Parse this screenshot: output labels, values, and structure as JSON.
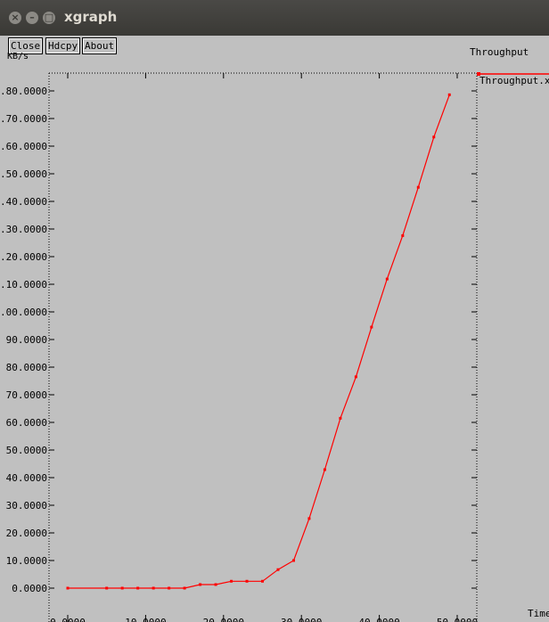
{
  "window": {
    "title": "xgraph"
  },
  "toolbar": {
    "close_label": "Close",
    "hdcpy_label": "Hdcpy",
    "about_label": "About"
  },
  "graph": {
    "title": "Throughput",
    "legend_label": "Throughput.xg",
    "line_color": "#ff0000"
  },
  "chart_data": {
    "type": "line",
    "title": "Throughput",
    "xlabel": "Time",
    "ylabel": "KB/s",
    "xlim": [
      -3.0,
      52.0
    ],
    "ylim": [
      -20.0,
      193.0
    ],
    "grid": false,
    "legend_position": "right",
    "x_ticks": [
      {
        "value": 0,
        "label": "0.0000"
      },
      {
        "value": 10,
        "label": "10.0000"
      },
      {
        "value": 20,
        "label": "20.0000"
      },
      {
        "value": 30,
        "label": "30.0000"
      },
      {
        "value": 40,
        "label": "40.0000"
      },
      {
        "value": 50,
        "label": "50.0000"
      }
    ],
    "y_ticks": [
      {
        "value": 0,
        "label": "0.0000"
      },
      {
        "value": 10,
        "label": "10.0000"
      },
      {
        "value": 20,
        "label": "20.0000"
      },
      {
        "value": 30,
        "label": "30.0000"
      },
      {
        "value": 40,
        "label": "40.0000"
      },
      {
        "value": 50,
        "label": "50.0000"
      },
      {
        "value": 60,
        "label": "60.0000"
      },
      {
        "value": 70,
        "label": "70.0000"
      },
      {
        "value": 80,
        "label": "80.0000"
      },
      {
        "value": 90,
        "label": "90.0000"
      },
      {
        "value": 100,
        "label": ".00.0000"
      },
      {
        "value": 110,
        "label": ".10.0000"
      },
      {
        "value": 120,
        "label": ".20.0000"
      },
      {
        "value": 130,
        "label": ".30.0000"
      },
      {
        "value": 140,
        "label": ".40.0000"
      },
      {
        "value": 150,
        "label": ".50.0000"
      },
      {
        "value": 160,
        "label": ".60.0000"
      },
      {
        "value": 170,
        "label": ".70.0000"
      },
      {
        "value": 180,
        "label": ".80.0000"
      }
    ],
    "series": [
      {
        "name": "Throughput.xg",
        "color": "#ff0000",
        "x": [
          0,
          5,
          7,
          9,
          11,
          13,
          15,
          17,
          19,
          21,
          23,
          25,
          27,
          29,
          31,
          33,
          35,
          37,
          39,
          41,
          43,
          45,
          47,
          49
        ],
        "y": [
          0,
          0,
          0,
          0,
          0,
          0,
          0,
          1.3,
          1.3,
          2.5,
          2.5,
          2.5,
          6.7,
          10,
          25.2,
          42.9,
          61.5,
          76.5,
          94.5,
          111.9,
          127.6,
          145.1,
          163.3,
          178.6
        ]
      }
    ]
  }
}
